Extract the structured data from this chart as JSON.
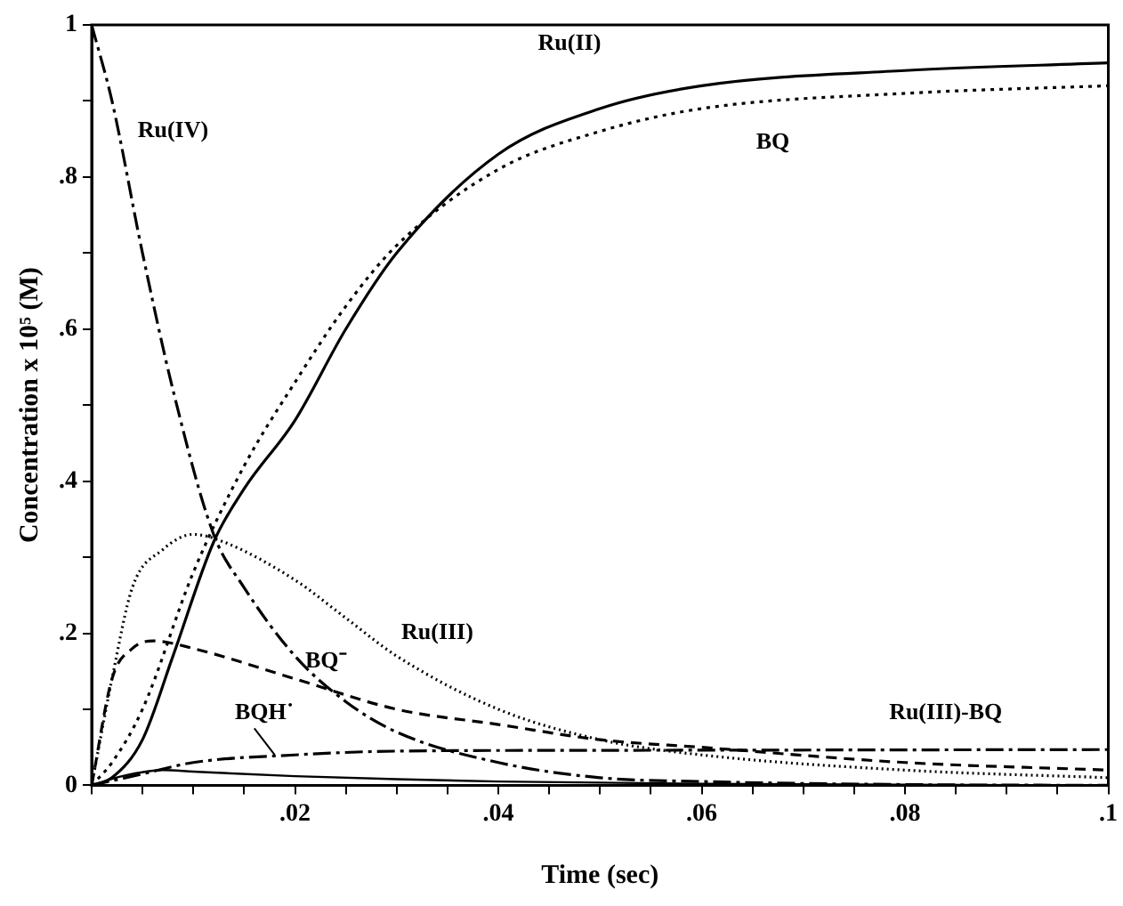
{
  "chart_data": {
    "type": "line",
    "xlabel": "Time (sec)",
    "ylabel": "Concentration x 10⁵ (M)",
    "xlim": [
      0,
      0.1
    ],
    "ylim": [
      0,
      1
    ],
    "xticks": [
      {
        "value": 0,
        "label": null
      },
      {
        "value": 0.005,
        "label": null
      },
      {
        "value": 0.01,
        "label": null
      },
      {
        "value": 0.015,
        "label": null
      },
      {
        "value": 0.02,
        "label": ".02"
      },
      {
        "value": 0.025,
        "label": null
      },
      {
        "value": 0.03,
        "label": null
      },
      {
        "value": 0.035,
        "label": null
      },
      {
        "value": 0.04,
        "label": ".04"
      },
      {
        "value": 0.045,
        "label": null
      },
      {
        "value": 0.05,
        "label": null
      },
      {
        "value": 0.055,
        "label": null
      },
      {
        "value": 0.06,
        "label": ".06"
      },
      {
        "value": 0.065,
        "label": null
      },
      {
        "value": 0.07,
        "label": null
      },
      {
        "value": 0.075,
        "label": null
      },
      {
        "value": 0.08,
        "label": ".08"
      },
      {
        "value": 0.085,
        "label": null
      },
      {
        "value": 0.09,
        "label": null
      },
      {
        "value": 0.095,
        "label": null
      },
      {
        "value": 0.1,
        "label": ".1"
      }
    ],
    "yticks": [
      0,
      {
        "value": 0.1,
        "label": null
      },
      {
        "value": 0.2,
        "label": ".2"
      },
      {
        "value": 0.3,
        "label": null
      },
      {
        "value": 0.4,
        "label": ".4"
      },
      {
        "value": 0.5,
        "label": null
      },
      {
        "value": 0.6,
        "label": ".6"
      },
      {
        "value": 0.7,
        "label": null
      },
      {
        "value": 0.8,
        "label": ".8"
      },
      {
        "value": 0.9,
        "label": null
      },
      1
    ],
    "grid": false,
    "legend": false,
    "marker": "none",
    "series": [
      {
        "name": "Ru(II)",
        "color": "#000000",
        "line_style": "solid",
        "x": [
          0,
          0.002,
          0.005,
          0.008,
          0.012,
          0.015,
          0.02,
          0.025,
          0.03,
          0.04,
          0.05,
          0.06,
          0.08,
          0.1
        ],
        "values": [
          0,
          0.01,
          0.06,
          0.17,
          0.32,
          0.39,
          0.48,
          0.6,
          0.7,
          0.83,
          0.89,
          0.92,
          0.94,
          0.95
        ]
      },
      {
        "name": "BQ",
        "color": "#000000",
        "line_style": "dotted",
        "x": [
          0,
          0.002,
          0.005,
          0.01,
          0.015,
          0.02,
          0.025,
          0.03,
          0.04,
          0.05,
          0.06,
          0.08,
          0.1
        ],
        "values": [
          0,
          0.03,
          0.1,
          0.28,
          0.42,
          0.53,
          0.63,
          0.71,
          0.81,
          0.86,
          0.89,
          0.91,
          0.92
        ]
      },
      {
        "name": "Ru(IV)",
        "color": "#000000",
        "line_style": "dashdot",
        "x": [
          0,
          0.002,
          0.005,
          0.008,
          0.012,
          0.015,
          0.02,
          0.025,
          0.03,
          0.04,
          0.05,
          0.06,
          0.08,
          0.1
        ],
        "values": [
          1,
          0.9,
          0.7,
          0.52,
          0.33,
          0.26,
          0.17,
          0.11,
          0.07,
          0.03,
          0.01,
          0.005,
          0.001,
          0
        ]
      },
      {
        "name": "Ru(III)",
        "color": "#000000",
        "line_style": "finedot",
        "x": [
          0,
          0.002,
          0.004,
          0.007,
          0.01,
          0.013,
          0.02,
          0.025,
          0.03,
          0.04,
          0.05,
          0.06,
          0.08,
          0.1
        ],
        "values": [
          0,
          0.14,
          0.26,
          0.31,
          0.33,
          0.32,
          0.27,
          0.22,
          0.17,
          0.1,
          0.06,
          0.04,
          0.02,
          0.01
        ]
      },
      {
        "name": "BQ⁻",
        "color": "#000000",
        "line_style": "dashed",
        "x": [
          0,
          0.002,
          0.004,
          0.006,
          0.01,
          0.02,
          0.03,
          0.04,
          0.05,
          0.06,
          0.08,
          0.1
        ],
        "values": [
          0,
          0.14,
          0.18,
          0.19,
          0.18,
          0.14,
          0.1,
          0.08,
          0.06,
          0.05,
          0.03,
          0.02
        ]
      },
      {
        "name": "Ru(III)-BQ",
        "color": "#000000",
        "line_style": "dashdot",
        "x": [
          0,
          0.005,
          0.01,
          0.02,
          0.03,
          0.05,
          0.1
        ],
        "values": [
          0,
          0.015,
          0.03,
          0.04,
          0.045,
          0.046,
          0.047
        ]
      },
      {
        "name": "BQH˙",
        "color": "#000000",
        "line_style": "solid",
        "x": [
          0,
          0.003,
          0.007,
          0.01,
          0.02,
          0.03,
          0.04,
          0.06,
          0.1
        ],
        "values": [
          0,
          0.012,
          0.02,
          0.018,
          0.012,
          0.008,
          0.005,
          0.002,
          0
        ]
      }
    ]
  }
}
